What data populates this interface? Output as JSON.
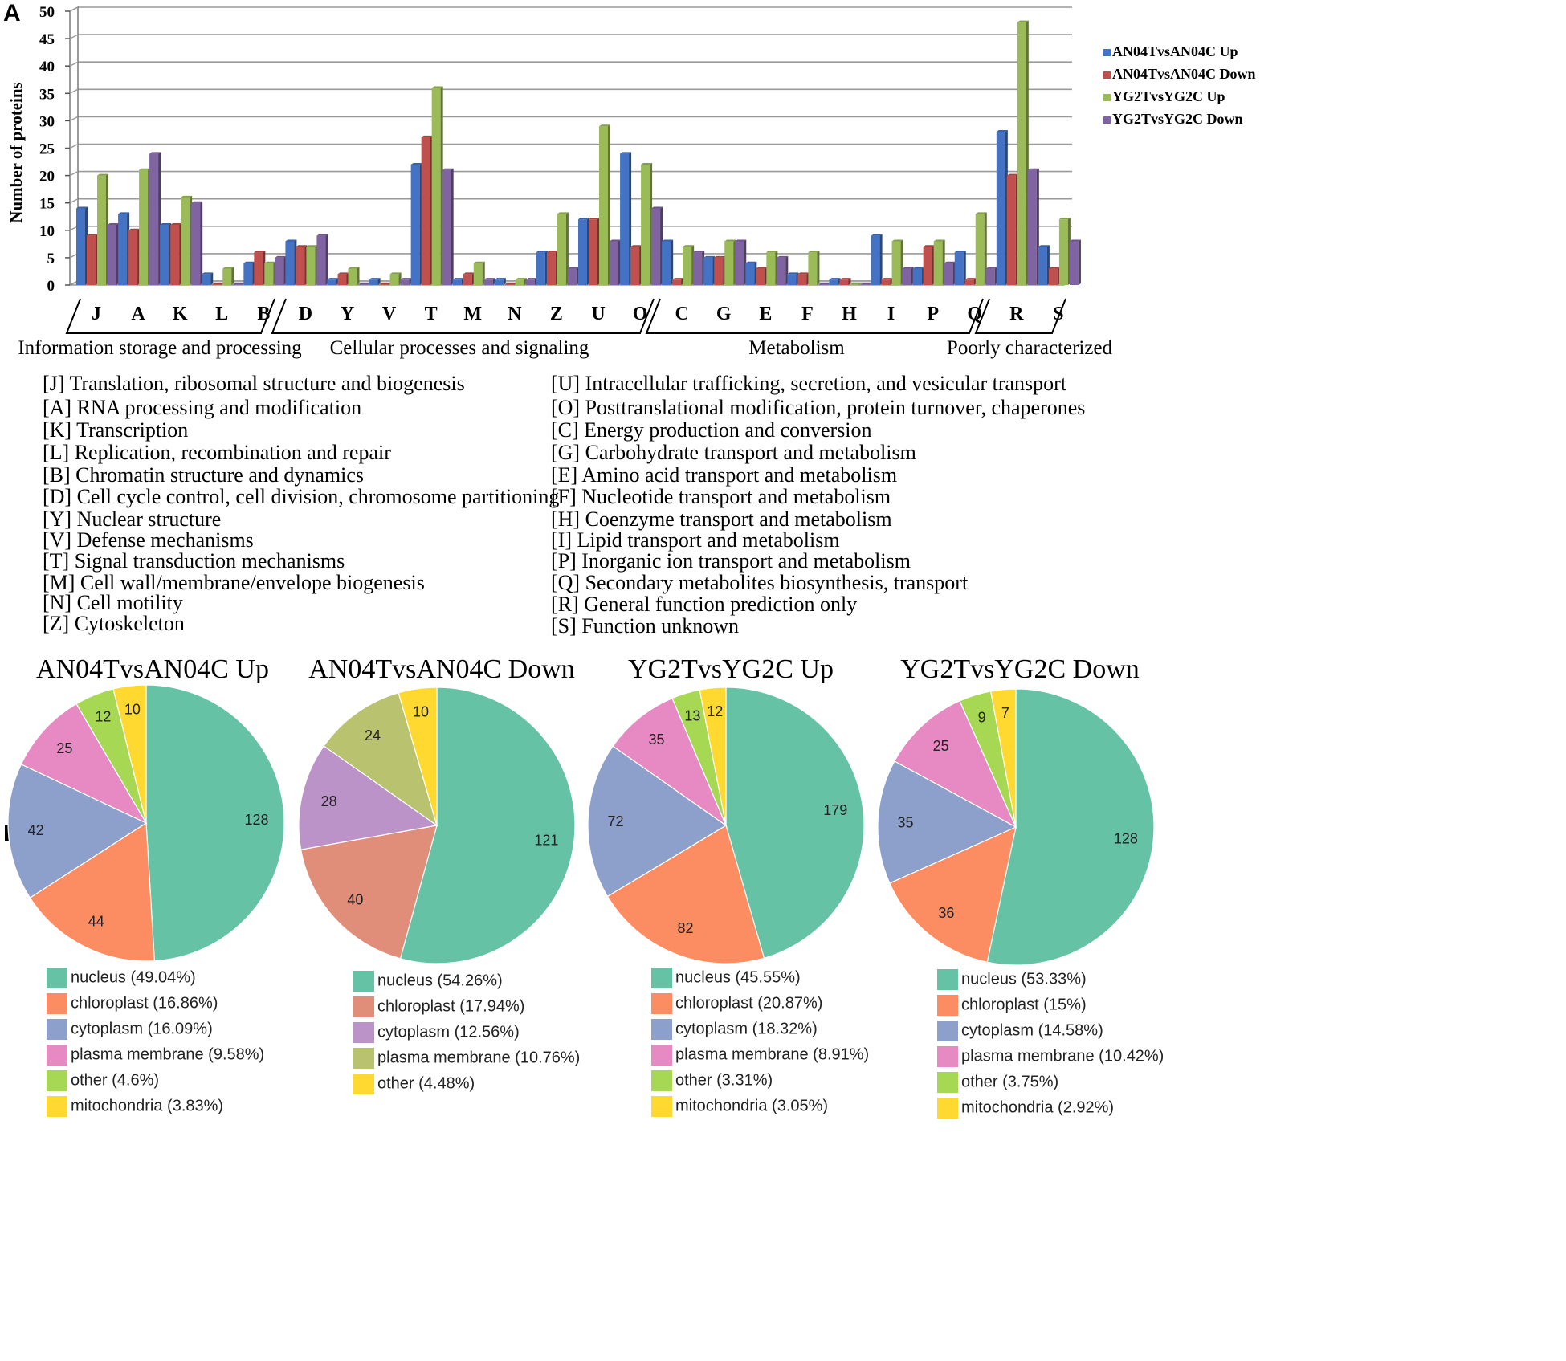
{
  "panel_labels": {
    "a": "A",
    "b": "B"
  },
  "chart_data": [
    {
      "type": "bar",
      "ylabel": "Number of proteins",
      "ylim": [
        0,
        50
      ],
      "yticks": [
        0,
        5,
        10,
        15,
        20,
        25,
        30,
        35,
        40,
        45,
        50
      ],
      "grid": true,
      "legend_position": "right",
      "categories": [
        "J",
        "A",
        "K",
        "L",
        "B",
        "D",
        "Y",
        "V",
        "T",
        "M",
        "N",
        "Z",
        "U",
        "O",
        "C",
        "G",
        "E",
        "F",
        "H",
        "I",
        "P",
        "Q",
        "R",
        "S"
      ],
      "series": [
        {
          "name": "AN04TvsAN04C Up",
          "color": "#4472C4",
          "values": [
            14,
            13,
            11,
            2,
            4,
            8,
            1,
            1,
            22,
            1,
            1,
            6,
            12,
            24,
            8,
            5,
            4,
            2,
            1,
            9,
            3,
            6,
            28,
            7
          ]
        },
        {
          "name": "AN04TvsAN04C Down",
          "color": "#C0504D",
          "values": [
            9,
            10,
            11,
            0,
            6,
            7,
            2,
            0,
            27,
            2,
            0,
            6,
            12,
            7,
            1,
            5,
            3,
            2,
            1,
            1,
            7,
            1,
            20,
            3
          ]
        },
        {
          "name": "YG2TvsYG2C Up",
          "color": "#9BBB59",
          "values": [
            20,
            21,
            16,
            3,
            4,
            7,
            3,
            2,
            36,
            4,
            1,
            13,
            29,
            22,
            7,
            8,
            6,
            6,
            0,
            8,
            8,
            13,
            48,
            12
          ]
        },
        {
          "name": "YG2TvsYG2C Down",
          "color": "#8064A2",
          "values": [
            11,
            24,
            15,
            0,
            5,
            9,
            0,
            1,
            21,
            1,
            1,
            3,
            8,
            14,
            6,
            8,
            5,
            0,
            0,
            3,
            4,
            3,
            21,
            8
          ]
        }
      ],
      "groups": [
        {
          "label": "Information storage and processing",
          "categories": [
            "J",
            "A",
            "K",
            "L",
            "B"
          ]
        },
        {
          "label": "Cellular processes and signaling",
          "categories": [
            "D",
            "Y",
            "V",
            "T",
            "M",
            "N",
            "Z",
            "U",
            "O"
          ]
        },
        {
          "label": "Metabolism",
          "categories": [
            "C",
            "G",
            "E",
            "F",
            "H",
            "I",
            "P",
            "Q"
          ]
        },
        {
          "label": "Poorly characterized",
          "categories": [
            "R",
            "S"
          ]
        }
      ]
    },
    {
      "type": "pie",
      "title": "AN04TvsAN04C Up",
      "slices": [
        {
          "label": "nucleus",
          "value": 128,
          "percent": "49.04%",
          "color": "#66C2A5"
        },
        {
          "label": "chloroplast",
          "value": 44,
          "percent": "16.86%",
          "color": "#FC8D62"
        },
        {
          "label": "cytoplasm",
          "value": 42,
          "percent": "16.09%",
          "color": "#8DA0CB"
        },
        {
          "label": "plasma membrane",
          "value": 25,
          "percent": "9.58%",
          "color": "#E78AC3"
        },
        {
          "label": "other",
          "value": 12,
          "percent": "4.6%",
          "color": "#A6D854"
        },
        {
          "label": "mitochondria",
          "value": 10,
          "percent": "3.83%",
          "color": "#FFD92F"
        }
      ]
    },
    {
      "type": "pie",
      "title": "AN04TvsAN04C Down",
      "slices": [
        {
          "label": "nucleus",
          "value": 121,
          "percent": "54.26%",
          "color": "#66C2A5"
        },
        {
          "label": "chloroplast",
          "value": 40,
          "percent": "17.94%",
          "color": "#E08E79"
        },
        {
          "label": "cytoplasm",
          "value": 28,
          "percent": "12.56%",
          "color": "#BC93C8"
        },
        {
          "label": "plasma membrane",
          "value": 24,
          "percent": "10.76%",
          "color": "#B9C26F"
        },
        {
          "label": "other",
          "value": 10,
          "percent": "4.48%",
          "color": "#FFD92F"
        }
      ]
    },
    {
      "type": "pie",
      "title": "YG2TvsYG2C Up",
      "slices": [
        {
          "label": "nucleus",
          "value": 179,
          "percent": "45.55%",
          "color": "#66C2A5"
        },
        {
          "label": "chloroplast",
          "value": 82,
          "percent": "20.87%",
          "color": "#FC8D62"
        },
        {
          "label": "cytoplasm",
          "value": 72,
          "percent": "18.32%",
          "color": "#8DA0CB"
        },
        {
          "label": "plasma membrane",
          "value": 35,
          "percent": "8.91%",
          "color": "#E78AC3"
        },
        {
          "label": "other",
          "value": 13,
          "percent": "3.31%",
          "color": "#A6D854"
        },
        {
          "label": "mitochondria",
          "value": 12,
          "percent": "3.05%",
          "color": "#FFD92F"
        }
      ]
    },
    {
      "type": "pie",
      "title": "YG2TvsYG2C Down",
      "slices": [
        {
          "label": "nucleus",
          "value": 128,
          "percent": "53.33%",
          "color": "#66C2A5"
        },
        {
          "label": "chloroplast",
          "value": 36,
          "percent": "15%",
          "color": "#FC8D62"
        },
        {
          "label": "cytoplasm",
          "value": 35,
          "percent": "14.58%",
          "color": "#8DA0CB"
        },
        {
          "label": "plasma membrane",
          "value": 25,
          "percent": "10.42%",
          "color": "#E78AC3"
        },
        {
          "label": "other",
          "value": 9,
          "percent": "3.75%",
          "color": "#A6D854"
        },
        {
          "label": "mitochondria",
          "value": 7,
          "percent": "2.92%",
          "color": "#FFD92F"
        }
      ]
    }
  ],
  "cog_key": [
    "[J] Translation, ribosomal structure and biogenesis",
    "[A] RNA processing and modification",
    "[K] Transcription",
    "[L] Replication, recombination and repair",
    "[B] Chromatin structure and dynamics",
    "[D] Cell cycle control, cell division, chromosome partitioning",
    "[Y] Nuclear structure",
    "[V] Defense mechanisms",
    "[T] Signal transduction mechanisms",
    "[M] Cell wall/membrane/envelope biogenesis",
    "[N] Cell motility",
    "[Z] Cytoskeleton",
    "[U] Intracellular trafficking, secretion, and vesicular transport",
    "[O] Posttranslational modification, protein turnover, chaperones",
    "[C] Energy production and conversion",
    "[G] Carbohydrate transport and metabolism",
    "[E] Amino acid transport and metabolism",
    "[F] Nucleotide transport and metabolism",
    "[H] Coenzyme transport and metabolism",
    "[I] Lipid transport and metabolism",
    "[P] Inorganic ion transport and metabolism",
    "[Q] Secondary metabolites biosynthesis, transport",
    "[R] General function prediction only",
    "[S] Function unknown"
  ]
}
